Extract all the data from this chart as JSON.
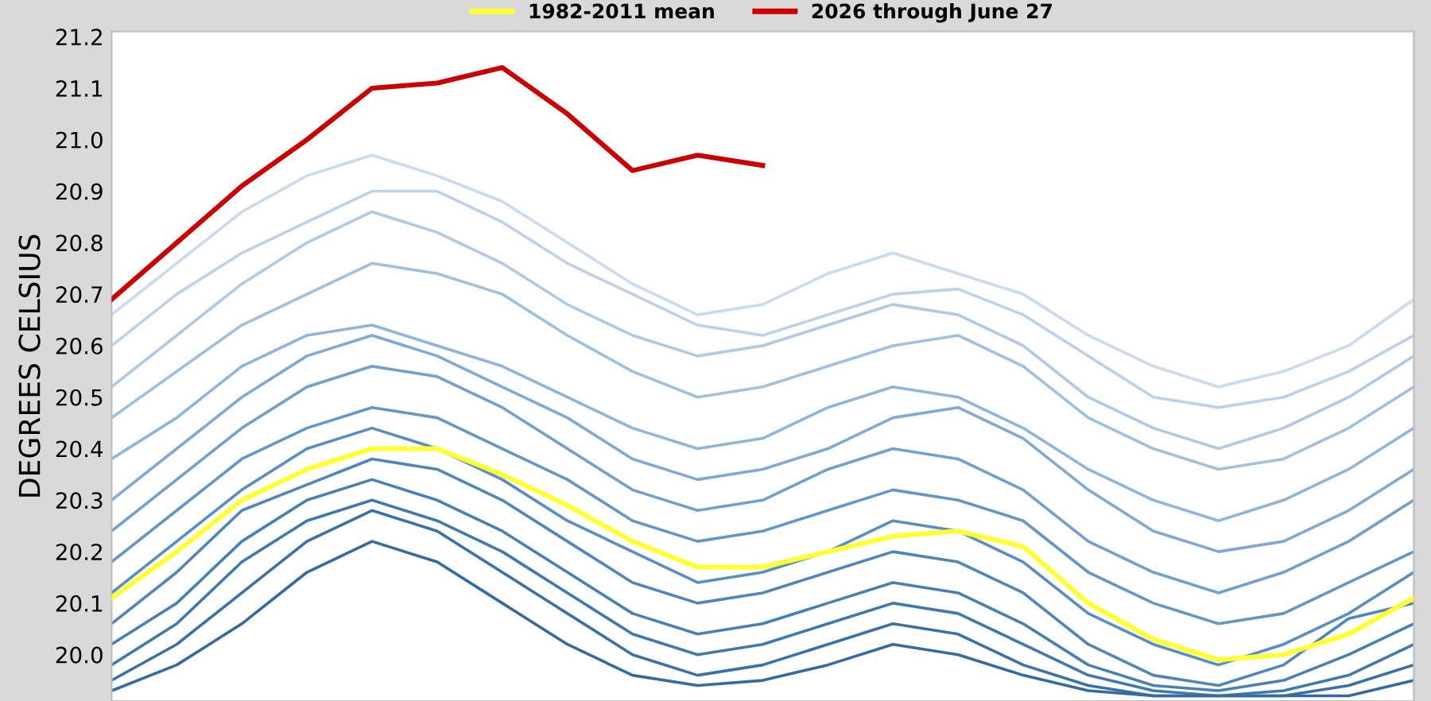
{
  "chart_data": {
    "type": "line",
    "ylabel": "DEGREES CELSIUS",
    "categories": [
      null,
      null,
      null,
      null,
      null,
      null,
      null,
      null,
      null,
      null,
      null,
      null,
      null,
      null,
      null,
      null,
      null,
      null,
      null,
      null,
      null
    ],
    "ylim": [
      19.91,
      21.21
    ],
    "yticks": [
      {
        "value": 20.0,
        "label": "20.0"
      },
      20.1,
      20.2,
      20.3,
      20.4,
      20.5,
      20.6,
      20.7,
      20.8,
      20.9,
      {
        "value": 21.0,
        "label": "21.0"
      },
      21.1,
      21.2
    ],
    "tick_labels": "y",
    "grid": false,
    "legend": "top",
    "marker": "none",
    "line_style": "solid",
    "series": [
      {
        "color": "#c9dbee",
        "values": [
          20.66,
          20.76,
          20.86,
          20.93,
          20.97,
          20.93,
          20.88,
          20.8,
          20.72,
          20.66,
          20.68,
          20.74,
          20.78,
          20.74,
          20.7,
          20.62,
          20.56,
          20.52,
          20.55,
          20.6,
          20.69
        ]
      },
      {
        "color": "#bcd2ea",
        "values": [
          20.6,
          20.7,
          20.78,
          20.84,
          20.9,
          20.9,
          20.84,
          20.76,
          20.7,
          20.64,
          20.62,
          20.66,
          20.7,
          20.71,
          20.66,
          20.58,
          20.5,
          20.48,
          20.5,
          20.55,
          20.62
        ]
      },
      {
        "color": "#aecae6",
        "values": [
          20.52,
          20.62,
          20.72,
          20.8,
          20.86,
          20.82,
          20.76,
          20.68,
          20.62,
          20.58,
          20.6,
          20.64,
          20.68,
          20.66,
          20.6,
          20.5,
          20.44,
          20.4,
          20.44,
          20.5,
          20.58
        ]
      },
      {
        "color": "#a0c0e0",
        "values": [
          20.46,
          20.55,
          20.64,
          20.7,
          20.76,
          20.74,
          20.7,
          20.62,
          20.55,
          20.5,
          20.52,
          20.56,
          20.6,
          20.62,
          20.56,
          20.46,
          20.4,
          20.36,
          20.38,
          20.44,
          20.52
        ]
      },
      {
        "color": "#90b5da",
        "values": [
          20.38,
          20.46,
          20.56,
          20.62,
          20.64,
          20.6,
          20.56,
          20.5,
          20.44,
          20.4,
          20.42,
          20.48,
          20.52,
          20.5,
          20.44,
          20.36,
          20.3,
          20.26,
          20.3,
          20.36,
          20.44
        ]
      },
      {
        "color": "#80aad3",
        "values": [
          20.3,
          20.4,
          20.5,
          20.58,
          20.62,
          20.58,
          20.52,
          20.46,
          20.38,
          20.34,
          20.36,
          20.4,
          20.46,
          20.48,
          20.42,
          20.32,
          20.24,
          20.2,
          20.22,
          20.28,
          20.36
        ]
      },
      {
        "color": "#70a0cc",
        "values": [
          20.24,
          20.34,
          20.44,
          20.52,
          20.56,
          20.54,
          20.48,
          20.4,
          20.32,
          20.28,
          20.3,
          20.36,
          20.4,
          20.38,
          20.32,
          20.22,
          20.16,
          20.12,
          20.16,
          20.22,
          20.3
        ]
      },
      {
        "color": "#6397c6",
        "values": [
          20.18,
          20.28,
          20.38,
          20.44,
          20.48,
          20.46,
          20.4,
          20.34,
          20.26,
          20.22,
          20.24,
          20.28,
          20.32,
          20.3,
          20.26,
          20.16,
          20.1,
          20.06,
          20.08,
          20.14,
          20.2
        ]
      },
      {
        "color": "#588fc0",
        "values": [
          20.12,
          20.22,
          20.32,
          20.4,
          20.44,
          20.4,
          20.34,
          20.26,
          20.2,
          20.14,
          20.16,
          20.2,
          20.26,
          20.24,
          20.18,
          20.08,
          20.02,
          19.98,
          20.02,
          20.08,
          20.16
        ]
      },
      {
        "color": "#4f87ba",
        "values": [
          20.06,
          20.16,
          20.28,
          20.33,
          20.38,
          20.36,
          20.3,
          20.22,
          20.14,
          20.1,
          20.12,
          20.16,
          20.2,
          20.18,
          20.12,
          20.02,
          19.96,
          19.94,
          19.98,
          20.07,
          20.1
        ]
      },
      {
        "color": "#4780b4",
        "values": [
          20.02,
          20.1,
          20.22,
          20.3,
          20.34,
          20.3,
          20.24,
          20.16,
          20.08,
          20.04,
          20.06,
          20.1,
          20.14,
          20.12,
          20.06,
          19.98,
          19.94,
          19.93,
          19.95,
          20.0,
          20.06
        ]
      },
      {
        "color": "#4079ae",
        "values": [
          19.98,
          20.06,
          20.18,
          20.26,
          20.3,
          20.26,
          20.2,
          20.12,
          20.04,
          20.0,
          20.02,
          20.06,
          20.1,
          20.08,
          20.02,
          19.96,
          19.93,
          19.92,
          19.93,
          19.96,
          20.02
        ]
      },
      {
        "color": "#3a72a8",
        "values": [
          19.95,
          20.02,
          20.12,
          20.22,
          20.28,
          20.24,
          20.16,
          20.08,
          20.0,
          19.96,
          19.98,
          20.02,
          20.06,
          20.04,
          19.98,
          19.94,
          19.92,
          19.92,
          19.92,
          19.94,
          19.98
        ]
      },
      {
        "color": "#346ba2",
        "values": [
          19.93,
          19.98,
          20.06,
          20.16,
          20.22,
          20.18,
          20.1,
          20.02,
          19.96,
          19.94,
          19.95,
          19.98,
          20.02,
          20.0,
          19.96,
          19.93,
          19.92,
          19.92,
          19.92,
          19.92,
          19.95
        ]
      },
      {
        "name": "1982-2011 mean",
        "color": "#ffff33",
        "values": [
          20.11,
          20.2,
          20.3,
          20.36,
          20.4,
          20.4,
          20.35,
          20.29,
          20.22,
          20.17,
          20.17,
          20.2,
          20.23,
          20.24,
          20.21,
          20.1,
          20.03,
          19.99,
          20.0,
          20.04,
          20.11
        ]
      },
      {
        "name": "2026 through June 27",
        "color": "#cc0000",
        "values": [
          20.69,
          20.8,
          20.91,
          21.0,
          21.1,
          21.11,
          21.14,
          21.05,
          20.94,
          20.97,
          20.95,
          null,
          null,
          null,
          null,
          null,
          null,
          null,
          null,
          null,
          null
        ]
      }
    ]
  }
}
